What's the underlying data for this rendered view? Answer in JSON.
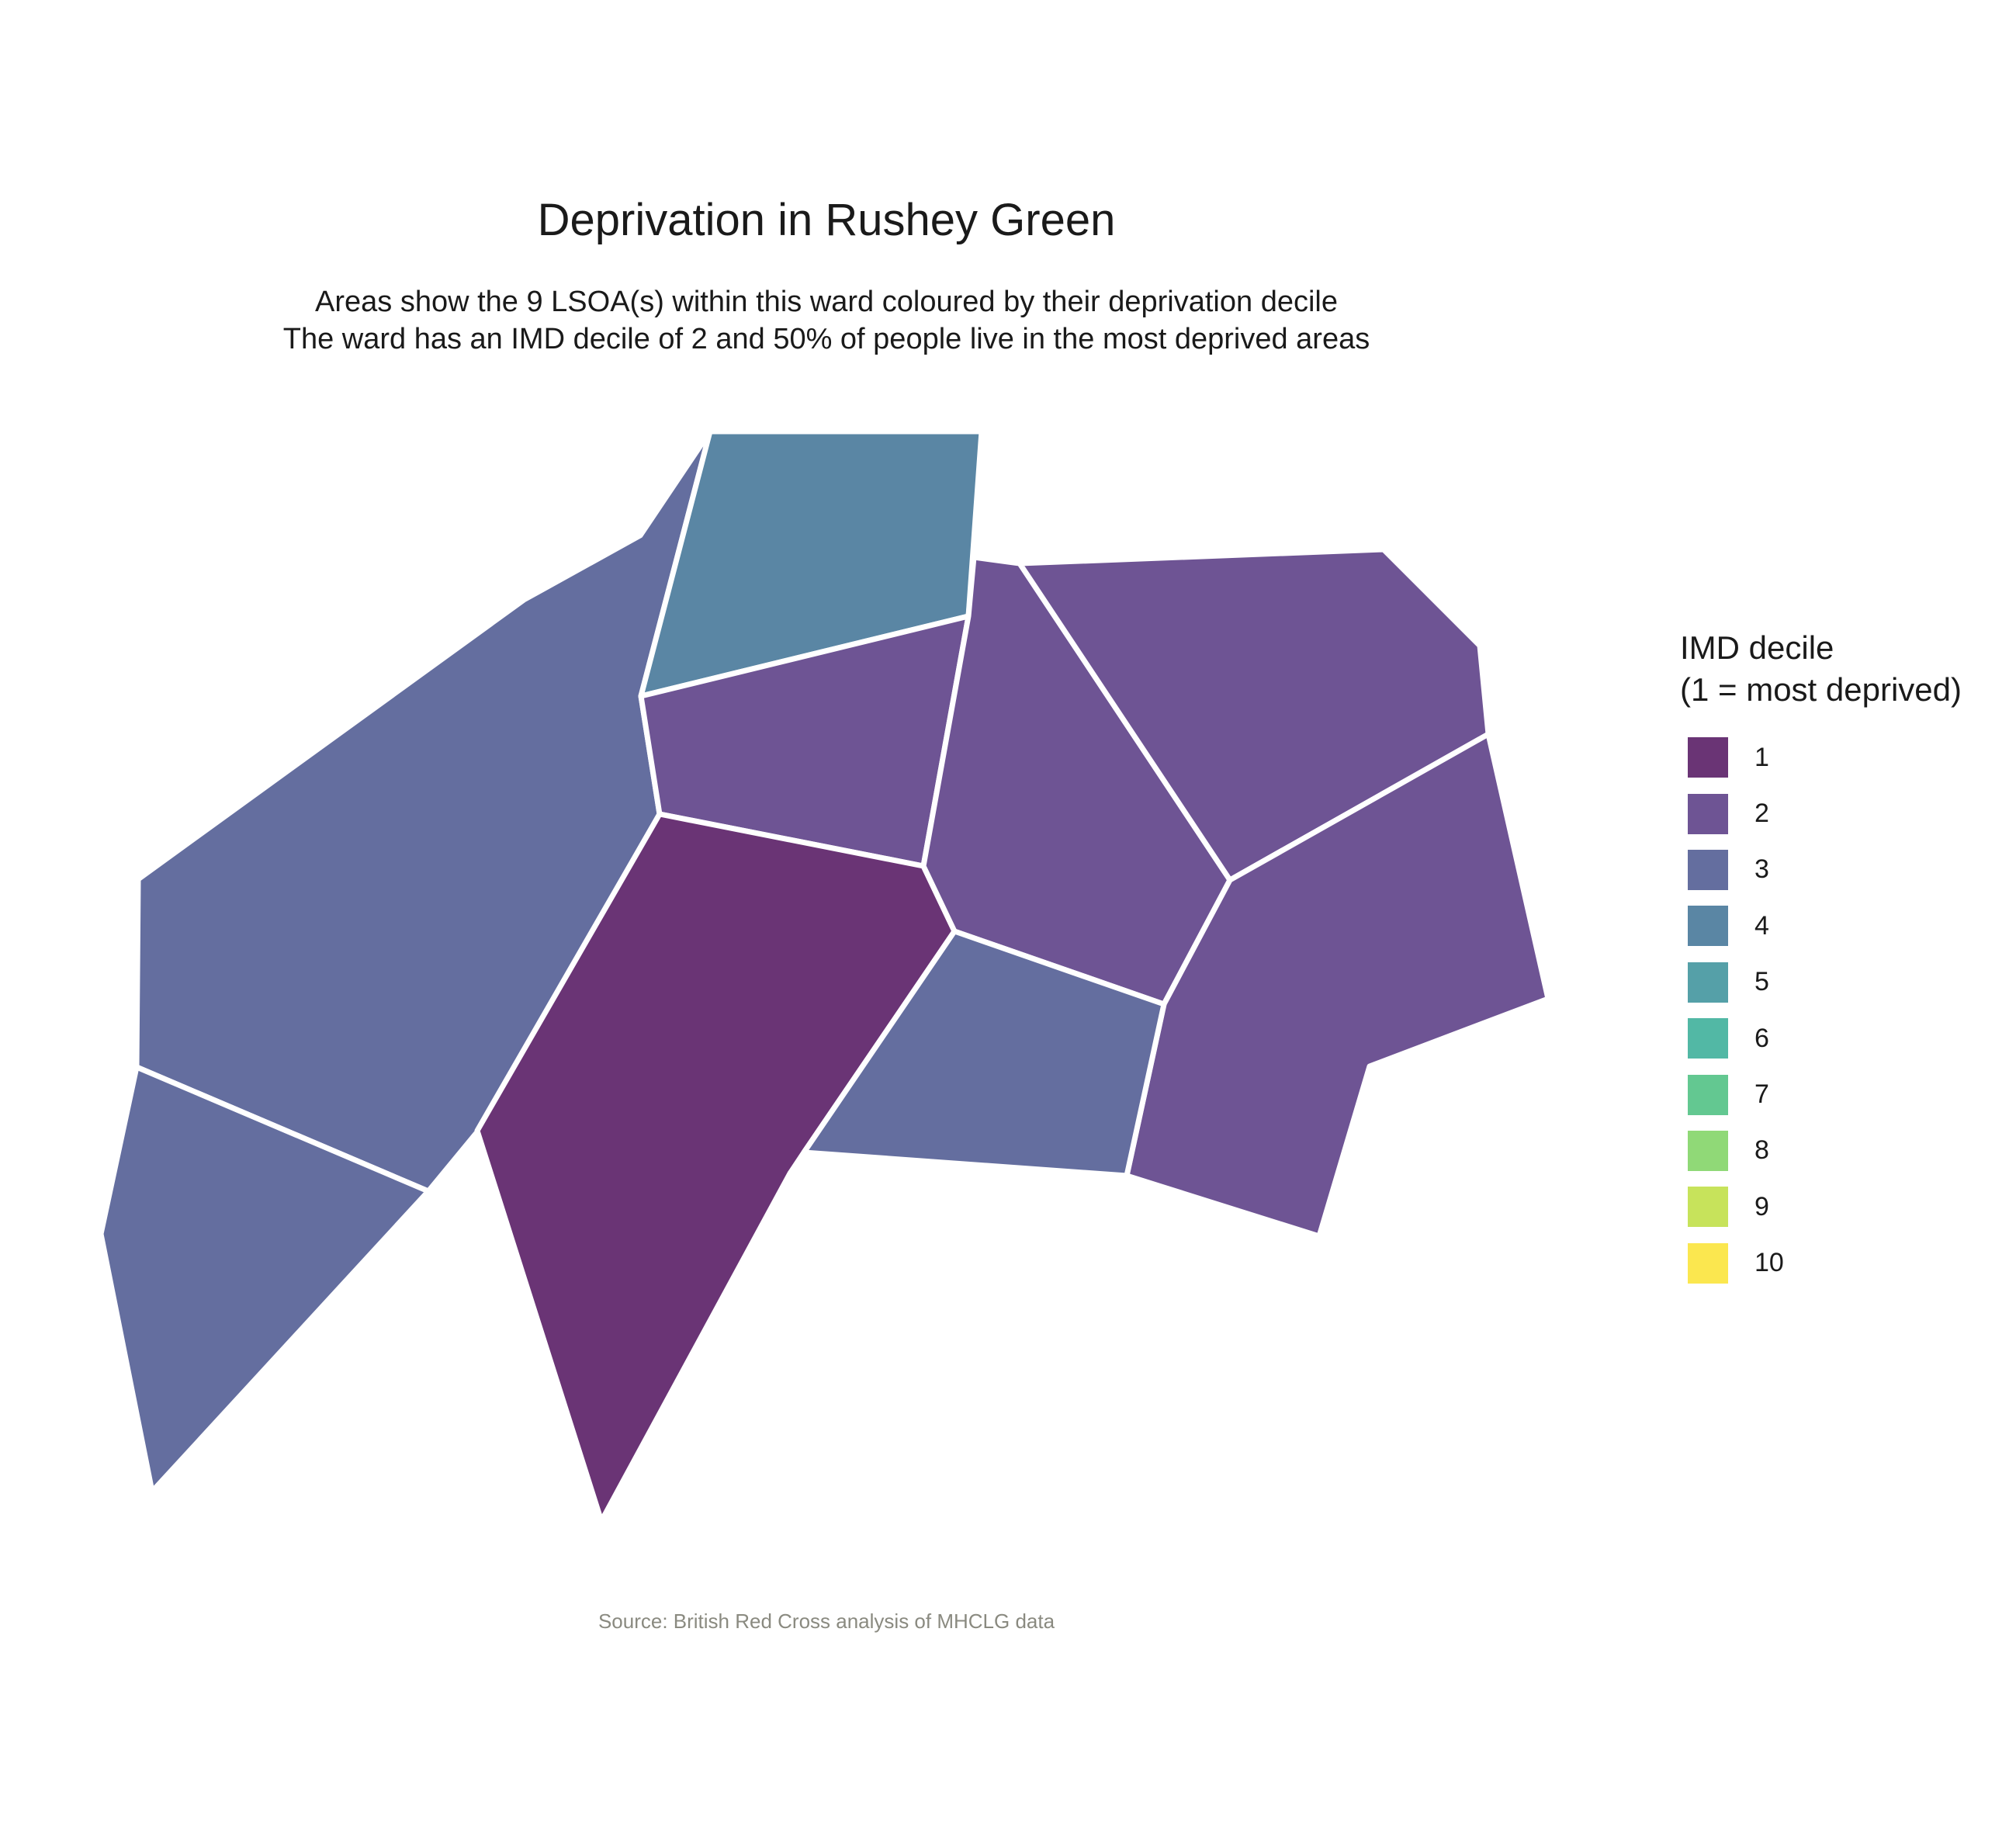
{
  "title": "Deprivation in Rushey Green",
  "subtitle": {
    "line1": "Areas show the 9 LSOA(s) within this ward coloured by their deprivation decile",
    "line2": "The ward has an IMD decile of 2 and 50% of people live in the most deprived areas"
  },
  "caption": "Source: British Red Cross analysis of MHCLG data",
  "legend": {
    "title_line1": "IMD decile",
    "title_line2": "(1 = most deprived)",
    "items": [
      {
        "label": "1",
        "color": "#6a3475"
      },
      {
        "label": "2",
        "color": "#6e5494"
      },
      {
        "label": "3",
        "color": "#646e9f"
      },
      {
        "label": "4",
        "color": "#5a86a4"
      },
      {
        "label": "5",
        "color": "#55a0a8"
      },
      {
        "label": "6",
        "color": "#52b8a5"
      },
      {
        "label": "7",
        "color": "#63c891"
      },
      {
        "label": "8",
        "color": "#90d977"
      },
      {
        "label": "9",
        "color": "#c7e35b"
      },
      {
        "label": "10",
        "color": "#fbe74f"
      }
    ]
  },
  "areas": [
    {
      "id": "west-large",
      "decile": 3
    },
    {
      "id": "southwest",
      "decile": 3
    },
    {
      "id": "north",
      "decile": 4
    },
    {
      "id": "center-north",
      "decile": 2
    },
    {
      "id": "center-south",
      "decile": 1
    },
    {
      "id": "center-east",
      "decile": 2
    },
    {
      "id": "northeast",
      "decile": 2
    },
    {
      "id": "east",
      "decile": 2
    },
    {
      "id": "south-middle",
      "decile": 3
    }
  ]
}
